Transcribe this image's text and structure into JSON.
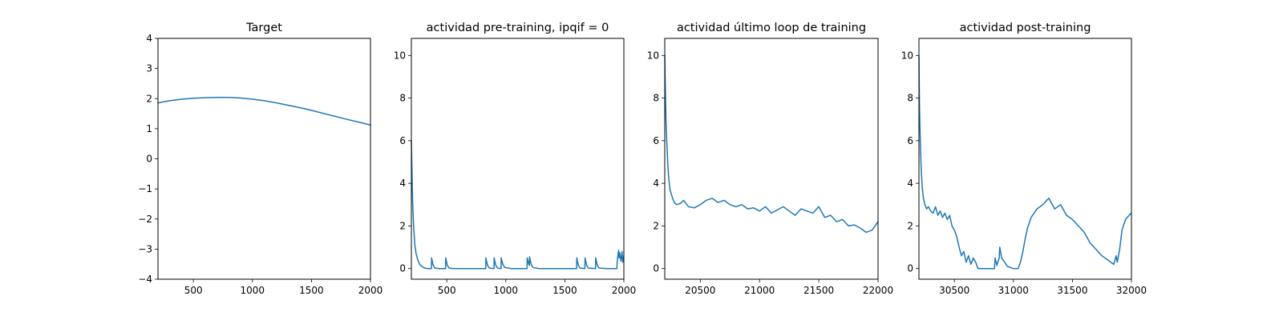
{
  "chart_data": [
    {
      "type": "line",
      "title": "Target",
      "xlim": [
        200,
        2000
      ],
      "ylim": [
        -4,
        4
      ],
      "xticks": [
        500,
        1000,
        1500,
        2000
      ],
      "xtick_labels": [
        "500",
        "1000",
        "1500",
        "2000"
      ],
      "yticks": [
        -4,
        -3,
        -2,
        -1,
        0,
        1,
        2,
        3,
        4
      ],
      "ytick_labels": [
        "−4",
        "−3",
        "−2",
        "−1",
        "0",
        "1",
        "2",
        "3",
        "4"
      ],
      "color": "#1f77b4",
      "series": [
        {
          "x": [
            200,
            300,
            400,
            500,
            600,
            700,
            750,
            800,
            900,
            1000,
            1100,
            1200,
            1300,
            1400,
            1500,
            1600,
            1700,
            1800,
            1900,
            2000
          ],
          "y": [
            1.86,
            1.93,
            1.98,
            2.01,
            2.03,
            2.04,
            2.04,
            2.04,
            2.02,
            1.98,
            1.93,
            1.86,
            1.78,
            1.7,
            1.61,
            1.51,
            1.41,
            1.31,
            1.22,
            1.12
          ]
        }
      ]
    },
    {
      "type": "line",
      "title": "actividad pre-training, ipqif = 0",
      "xlim": [
        200,
        2000
      ],
      "ylim": [
        -0.5,
        10.8
      ],
      "xticks": [
        500,
        1000,
        1500,
        2000
      ],
      "xtick_labels": [
        "500",
        "1000",
        "1500",
        "2000"
      ],
      "yticks": [
        0,
        2,
        4,
        6,
        8,
        10
      ],
      "ytick_labels": [
        "0",
        "2",
        "4",
        "6",
        "8",
        "10"
      ],
      "color": "#1f77b4",
      "series": [
        {
          "x": [
            200,
            210,
            220,
            230,
            240,
            255,
            270,
            290,
            310,
            340,
            370,
            371,
            385,
            400,
            440,
            490,
            491,
            505,
            520,
            560,
            640,
            720,
            800,
            830,
            831,
            845,
            860,
            900,
            901,
            915,
            930,
            960,
            961,
            975,
            990,
            1050,
            1120,
            1180,
            1181,
            1195,
            1200,
            1201,
            1215,
            1230,
            1280,
            1380,
            1480,
            1600,
            1601,
            1615,
            1630,
            1670,
            1671,
            1685,
            1700,
            1760,
            1761,
            1775,
            1790,
            1860,
            1920,
            1940,
            1945,
            1955,
            1960,
            1965,
            1975,
            1985,
            1990,
            2000
          ],
          "y": [
            6.0,
            3.2,
            1.9,
            1.1,
            0.7,
            0.4,
            0.2,
            0.1,
            0.03,
            0.0,
            0.0,
            0.5,
            0.15,
            0.02,
            0.0,
            0.0,
            0.5,
            0.15,
            0.02,
            0.0,
            0.0,
            0.0,
            0.0,
            0.0,
            0.5,
            0.15,
            0.02,
            0.0,
            0.5,
            0.15,
            0.02,
            0.0,
            0.5,
            0.2,
            0.05,
            0.0,
            0.0,
            0.0,
            0.5,
            0.2,
            0.15,
            0.55,
            0.2,
            0.05,
            0.0,
            0.0,
            0.0,
            0.0,
            0.5,
            0.15,
            0.02,
            0.0,
            0.5,
            0.15,
            0.02,
            0.0,
            0.5,
            0.15,
            0.02,
            0.0,
            0.0,
            0.0,
            0.4,
            0.85,
            0.5,
            0.75,
            0.35,
            0.8,
            0.3,
            0.6
          ]
        }
      ]
    },
    {
      "type": "line",
      "title": "actividad último loop de training",
      "xlim": [
        20200,
        22000
      ],
      "ylim": [
        -0.5,
        10.8
      ],
      "xticks": [
        20500,
        21000,
        21500,
        22000
      ],
      "xtick_labels": [
        "20500",
        "21000",
        "21500",
        "22000"
      ],
      "yticks": [
        0,
        2,
        4,
        6,
        8,
        10
      ],
      "ytick_labels": [
        "0",
        "2",
        "4",
        "6",
        "8",
        "10"
      ],
      "color": "#1f77b4",
      "series": [
        {
          "x": [
            20200,
            20205,
            20210,
            20218,
            20226,
            20234,
            20245,
            20260,
            20280,
            20300,
            20330,
            20360,
            20400,
            20450,
            20500,
            20550,
            20600,
            20650,
            20700,
            20750,
            20800,
            20850,
            20900,
            20950,
            21000,
            21050,
            21100,
            21150,
            21200,
            21250,
            21300,
            21350,
            21400,
            21450,
            21500,
            21550,
            21600,
            21650,
            21700,
            21750,
            21800,
            21850,
            21900,
            21950,
            22000
          ],
          "y": [
            10.0,
            8.5,
            7.0,
            5.8,
            4.9,
            4.2,
            3.7,
            3.4,
            3.1,
            3.0,
            3.05,
            3.2,
            2.9,
            2.85,
            3.0,
            3.2,
            3.3,
            3.1,
            3.2,
            3.0,
            2.9,
            3.0,
            2.8,
            2.85,
            2.7,
            2.9,
            2.6,
            2.75,
            2.9,
            2.7,
            2.5,
            2.8,
            2.7,
            2.6,
            2.9,
            2.4,
            2.5,
            2.2,
            2.3,
            2.0,
            2.05,
            1.9,
            1.7,
            1.8,
            2.2
          ]
        }
      ]
    },
    {
      "type": "line",
      "title": "actividad post-training",
      "xlim": [
        30200,
        32000
      ],
      "ylim": [
        -0.5,
        10.8
      ],
      "xticks": [
        30500,
        31000,
        31500,
        32000
      ],
      "xtick_labels": [
        "30500",
        "31000",
        "31500",
        "32000"
      ],
      "yticks": [
        0,
        2,
        4,
        6,
        8,
        10
      ],
      "ytick_labels": [
        "0",
        "2",
        "4",
        "6",
        "8",
        "10"
      ],
      "color": "#1f77b4",
      "series": [
        {
          "x": [
            30200,
            30205,
            30212,
            30220,
            30228,
            30238,
            30250,
            30265,
            30280,
            30300,
            30320,
            30340,
            30360,
            30380,
            30400,
            30420,
            30440,
            30460,
            30480,
            30500,
            30520,
            30540,
            30560,
            30580,
            30600,
            30620,
            30640,
            30660,
            30680,
            30700,
            30750,
            30800,
            30840,
            30845,
            30860,
            30880,
            30885,
            30900,
            30950,
            31000,
            31040,
            31060,
            31080,
            31100,
            31120,
            31150,
            31200,
            31250,
            31300,
            31350,
            31400,
            31450,
            31500,
            31550,
            31600,
            31650,
            31700,
            31750,
            31800,
            31850,
            31870,
            31880,
            31900,
            31920,
            31950,
            31980,
            32000
          ],
          "y": [
            10.0,
            7.5,
            5.8,
            4.6,
            3.8,
            3.3,
            3.0,
            2.8,
            2.9,
            2.7,
            2.6,
            2.9,
            2.5,
            2.7,
            2.4,
            2.6,
            2.3,
            2.5,
            2.0,
            1.8,
            1.5,
            1.0,
            0.6,
            0.8,
            0.3,
            0.6,
            0.2,
            0.5,
            0.3,
            0.0,
            0.0,
            0.0,
            0.0,
            0.5,
            0.15,
            0.5,
            1.0,
            0.5,
            0.1,
            0.0,
            0.0,
            0.3,
            0.8,
            1.4,
            1.9,
            2.4,
            2.8,
            3.0,
            3.3,
            2.8,
            3.0,
            2.5,
            2.3,
            2.0,
            1.7,
            1.2,
            0.9,
            0.6,
            0.4,
            0.2,
            0.6,
            0.3,
            0.9,
            1.8,
            2.3,
            2.5,
            2.6
          ]
        }
      ]
    }
  ]
}
